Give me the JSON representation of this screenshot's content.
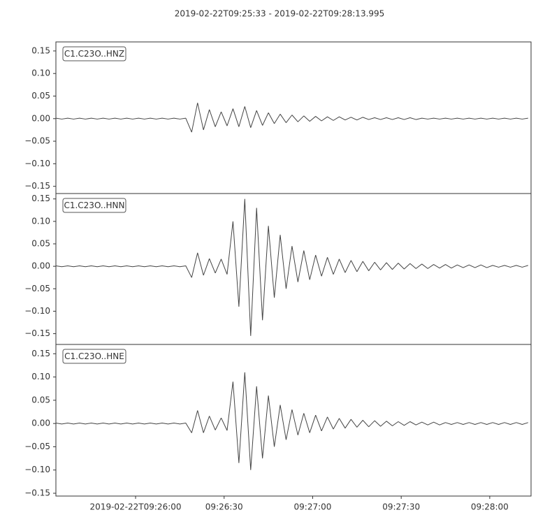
{
  "chart_data": {
    "type": "line",
    "title": "2019-02-22T09:25:33  -  2019-02-22T09:28:13.995",
    "xlim": [
      "2019-02-22T09:25:33",
      "2019-02-22T09:28:13.995"
    ],
    "xticks": [
      "2019-02-22T09:26:00",
      {
        "value": "2019-02-22T09:26:30",
        "label": "09:26:30"
      },
      {
        "value": "2019-02-22T09:27:00",
        "label": "09:27:00"
      },
      {
        "value": "2019-02-22T09:27:30",
        "label": "09:27:30"
      },
      {
        "value": "2019-02-22T09:28:00",
        "label": "09:28:00"
      }
    ],
    "x": [
      "2019-02-22T09:25:33",
      "2019-02-22T09:25:35",
      "2019-02-22T09:25:37",
      "2019-02-22T09:25:39",
      "2019-02-22T09:25:41",
      "2019-02-22T09:25:43",
      "2019-02-22T09:25:45",
      "2019-02-22T09:25:47",
      "2019-02-22T09:25:49",
      "2019-02-22T09:25:51",
      "2019-02-22T09:25:53",
      "2019-02-22T09:25:55",
      "2019-02-22T09:25:57",
      "2019-02-22T09:25:59",
      "2019-02-22T09:26:01",
      "2019-02-22T09:26:03",
      "2019-02-22T09:26:05",
      "2019-02-22T09:26:07",
      "2019-02-22T09:26:09",
      "2019-02-22T09:26:11",
      "2019-02-22T09:26:13",
      "2019-02-22T09:26:15",
      "2019-02-22T09:26:17",
      "2019-02-22T09:26:19",
      "2019-02-22T09:26:21",
      "2019-02-22T09:26:23",
      "2019-02-22T09:26:25",
      "2019-02-22T09:26:27",
      "2019-02-22T09:26:29",
      "2019-02-22T09:26:31",
      "2019-02-22T09:26:33",
      "2019-02-22T09:26:35",
      "2019-02-22T09:26:37",
      "2019-02-22T09:26:39",
      "2019-02-22T09:26:41",
      "2019-02-22T09:26:43",
      "2019-02-22T09:26:45",
      "2019-02-22T09:26:47",
      "2019-02-22T09:26:49",
      "2019-02-22T09:26:51",
      "2019-02-22T09:26:53",
      "2019-02-22T09:26:55",
      "2019-02-22T09:26:57",
      "2019-02-22T09:26:59",
      "2019-02-22T09:27:01",
      "2019-02-22T09:27:03",
      "2019-02-22T09:27:05",
      "2019-02-22T09:27:07",
      "2019-02-22T09:27:09",
      "2019-02-22T09:27:11",
      "2019-02-22T09:27:13",
      "2019-02-22T09:27:15",
      "2019-02-22T09:27:17",
      "2019-02-22T09:27:19",
      "2019-02-22T09:27:21",
      "2019-02-22T09:27:23",
      "2019-02-22T09:27:25",
      "2019-02-22T09:27:27",
      "2019-02-22T09:27:29",
      "2019-02-22T09:27:31",
      "2019-02-22T09:27:33",
      "2019-02-22T09:27:35",
      "2019-02-22T09:27:37",
      "2019-02-22T09:27:39",
      "2019-02-22T09:27:41",
      "2019-02-22T09:27:43",
      "2019-02-22T09:27:45",
      "2019-02-22T09:27:47",
      "2019-02-22T09:27:49",
      "2019-02-22T09:27:51",
      "2019-02-22T09:27:53",
      "2019-02-22T09:27:55",
      "2019-02-22T09:27:57",
      "2019-02-22T09:27:59",
      "2019-02-22T09:28:01",
      "2019-02-22T09:28:03",
      "2019-02-22T09:28:05",
      "2019-02-22T09:28:07",
      "2019-02-22T09:28:09",
      "2019-02-22T09:28:11",
      "2019-02-22T09:28:13"
    ],
    "yticks": [
      0.15,
      {
        "value": 0.1,
        "label": "0.10"
      },
      0.05,
      {
        "value": 0,
        "label": "0.00"
      },
      {
        "value": -0.05,
        "label": "−0.05"
      },
      {
        "value": -0.1,
        "label": "−0.10"
      },
      {
        "value": -0.15,
        "label": "−0.15"
      }
    ],
    "series": [
      {
        "name": "C1.C23O..HNZ",
        "color": "#444444",
        "ylim": [
          -0.166,
          0.17
        ],
        "values": [
          0.001,
          -0.001,
          0.001,
          -0.001,
          0.001,
          -0.001,
          0.001,
          -0.001,
          0.001,
          -0.001,
          0.001,
          -0.001,
          0.001,
          -0.001,
          0.001,
          -0.001,
          0.001,
          -0.001,
          0.001,
          -0.001,
          0.001,
          -0.001,
          0.001,
          -0.03,
          0.035,
          -0.025,
          0.02,
          -0.018,
          0.015,
          -0.016,
          0.022,
          -0.018,
          0.027,
          -0.02,
          0.018,
          -0.015,
          0.013,
          -0.011,
          0.01,
          -0.009,
          0.008,
          -0.007,
          0.006,
          -0.006,
          0.005,
          -0.005,
          0.004,
          -0.004,
          0.004,
          -0.003,
          0.003,
          -0.003,
          0.003,
          -0.002,
          0.002,
          -0.002,
          0.002,
          -0.002,
          0.002,
          -0.002,
          0.002,
          -0.002,
          0.001,
          -0.001,
          0.001,
          -0.001,
          0.001,
          -0.001,
          0.001,
          -0.001,
          0.001,
          -0.001,
          0.001,
          -0.001,
          0.001,
          -0.001,
          0.001,
          -0.001,
          0.001,
          -0.001,
          0.001
        ]
      },
      {
        "name": "C1.C23O..HNN",
        "color": "#444444",
        "ylim": [
          -0.174,
          0.162
        ],
        "values": [
          0.001,
          -0.001,
          0.001,
          -0.001,
          0.001,
          -0.001,
          0.001,
          -0.001,
          0.001,
          -0.001,
          0.001,
          -0.001,
          0.001,
          -0.001,
          0.001,
          -0.001,
          0.001,
          -0.001,
          0.001,
          -0.001,
          0.001,
          -0.001,
          0.001,
          -0.025,
          0.03,
          -0.02,
          0.017,
          -0.015,
          0.016,
          -0.018,
          0.1,
          -0.09,
          0.15,
          -0.155,
          0.13,
          -0.12,
          0.09,
          -0.07,
          0.07,
          -0.05,
          0.045,
          -0.035,
          0.035,
          -0.03,
          0.025,
          -0.022,
          0.02,
          -0.018,
          0.016,
          -0.014,
          0.013,
          -0.012,
          0.011,
          -0.01,
          0.009,
          -0.008,
          0.008,
          -0.007,
          0.007,
          -0.006,
          0.006,
          -0.005,
          0.005,
          -0.005,
          0.004,
          -0.004,
          0.004,
          -0.004,
          0.003,
          -0.003,
          0.003,
          -0.003,
          0.003,
          -0.003,
          0.002,
          -0.002,
          0.002,
          -0.002,
          0.002,
          -0.002,
          0.002
        ]
      },
      {
        "name": "C1.C23O..HNE",
        "color": "#444444",
        "ylim": [
          -0.156,
          0.17
        ],
        "values": [
          0.001,
          -0.001,
          0.001,
          -0.001,
          0.001,
          -0.001,
          0.001,
          -0.001,
          0.001,
          -0.001,
          0.001,
          -0.001,
          0.001,
          -0.001,
          0.001,
          -0.001,
          0.001,
          -0.001,
          0.001,
          -0.001,
          0.001,
          -0.001,
          0.001,
          -0.02,
          0.028,
          -0.02,
          0.016,
          -0.014,
          0.012,
          -0.015,
          0.09,
          -0.085,
          0.11,
          -0.1,
          0.08,
          -0.075,
          0.06,
          -0.05,
          0.04,
          -0.035,
          0.03,
          -0.025,
          0.022,
          -0.02,
          0.018,
          -0.016,
          0.014,
          -0.012,
          0.011,
          -0.01,
          0.009,
          -0.008,
          0.007,
          -0.007,
          0.006,
          -0.006,
          0.005,
          -0.005,
          0.004,
          -0.004,
          0.004,
          -0.003,
          0.003,
          -0.003,
          0.003,
          -0.003,
          0.002,
          -0.002,
          0.002,
          -0.002,
          0.002,
          -0.002,
          0.002,
          -0.002,
          0.002,
          -0.002,
          0.002,
          -0.002,
          0.002,
          -0.002,
          0.002
        ]
      }
    ]
  }
}
